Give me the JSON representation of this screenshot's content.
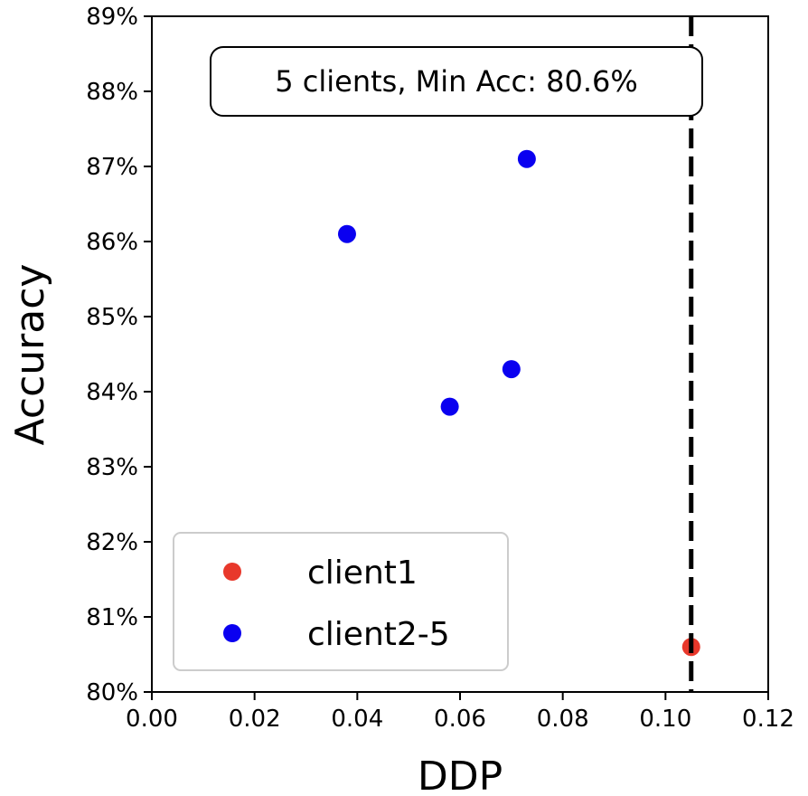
{
  "chart_data": {
    "type": "scatter",
    "xlabel": "DDP",
    "ylabel": "Accuracy",
    "xlim": [
      0,
      0.12
    ],
    "ylim": [
      80,
      89
    ],
    "x_ticks": [
      "0.00",
      "0.02",
      "0.04",
      "0.06",
      "0.08",
      "0.10",
      "0.12"
    ],
    "y_ticks": [
      "80%",
      "81%",
      "82%",
      "83%",
      "84%",
      "85%",
      "86%",
      "87%",
      "88%",
      "89%"
    ],
    "annotation": "5 clients, Min Acc: 80.6%",
    "threshold_x": 0.105,
    "legend_position": "lower-left",
    "grid": false,
    "series": [
      {
        "name": "client1",
        "color": "#e8382b",
        "points": [
          {
            "x": 0.105,
            "y": 80.6
          }
        ]
      },
      {
        "name": "client2-5",
        "color": "#0a00f0",
        "points": [
          {
            "x": 0.038,
            "y": 86.1
          },
          {
            "x": 0.073,
            "y": 87.1
          },
          {
            "x": 0.058,
            "y": 83.8
          },
          {
            "x": 0.07,
            "y": 84.3
          }
        ]
      }
    ]
  }
}
